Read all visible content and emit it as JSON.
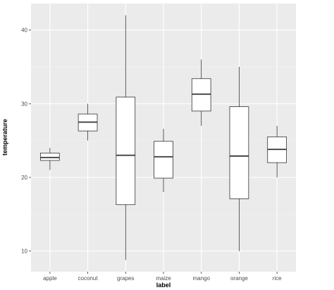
{
  "chart_data": {
    "type": "boxplot",
    "xlabel": "label",
    "ylabel": "temperature",
    "categories": [
      "apple",
      "coconut",
      "grapes",
      "maize",
      "mango",
      "orange",
      "rice"
    ],
    "boxes": [
      {
        "label": "apple",
        "min": 21.0,
        "q1": 22.3,
        "median": 22.7,
        "q3": 23.3,
        "max": 24.0
      },
      {
        "label": "coconut",
        "min": 25.0,
        "q1": 26.3,
        "median": 27.5,
        "q3": 28.6,
        "max": 30.0
      },
      {
        "label": "grapes",
        "min": 8.8,
        "q1": 16.3,
        "median": 23.0,
        "q3": 30.9,
        "max": 42.0
      },
      {
        "label": "maize",
        "min": 18.0,
        "q1": 19.9,
        "median": 22.8,
        "q3": 24.9,
        "max": 26.6
      },
      {
        "label": "mango",
        "min": 27.0,
        "q1": 29.0,
        "median": 31.3,
        "q3": 33.4,
        "max": 36.0
      },
      {
        "label": "orange",
        "min": 10.0,
        "q1": 17.1,
        "median": 22.9,
        "q3": 29.6,
        "max": 35.0
      },
      {
        "label": "rice",
        "min": 20.0,
        "q1": 22.0,
        "median": 23.8,
        "q3": 25.5,
        "max": 27.0
      }
    ],
    "yticks": [
      10,
      20,
      30,
      40
    ],
    "ylim": [
      7.2,
      43.6
    ],
    "grid": true,
    "colors": {
      "panel": "#ebebeb",
      "grid_major": "#ffffff",
      "grid_minor": "#f4f4f4",
      "box_fill": "#ffffff",
      "box_stroke": "#333333"
    }
  }
}
